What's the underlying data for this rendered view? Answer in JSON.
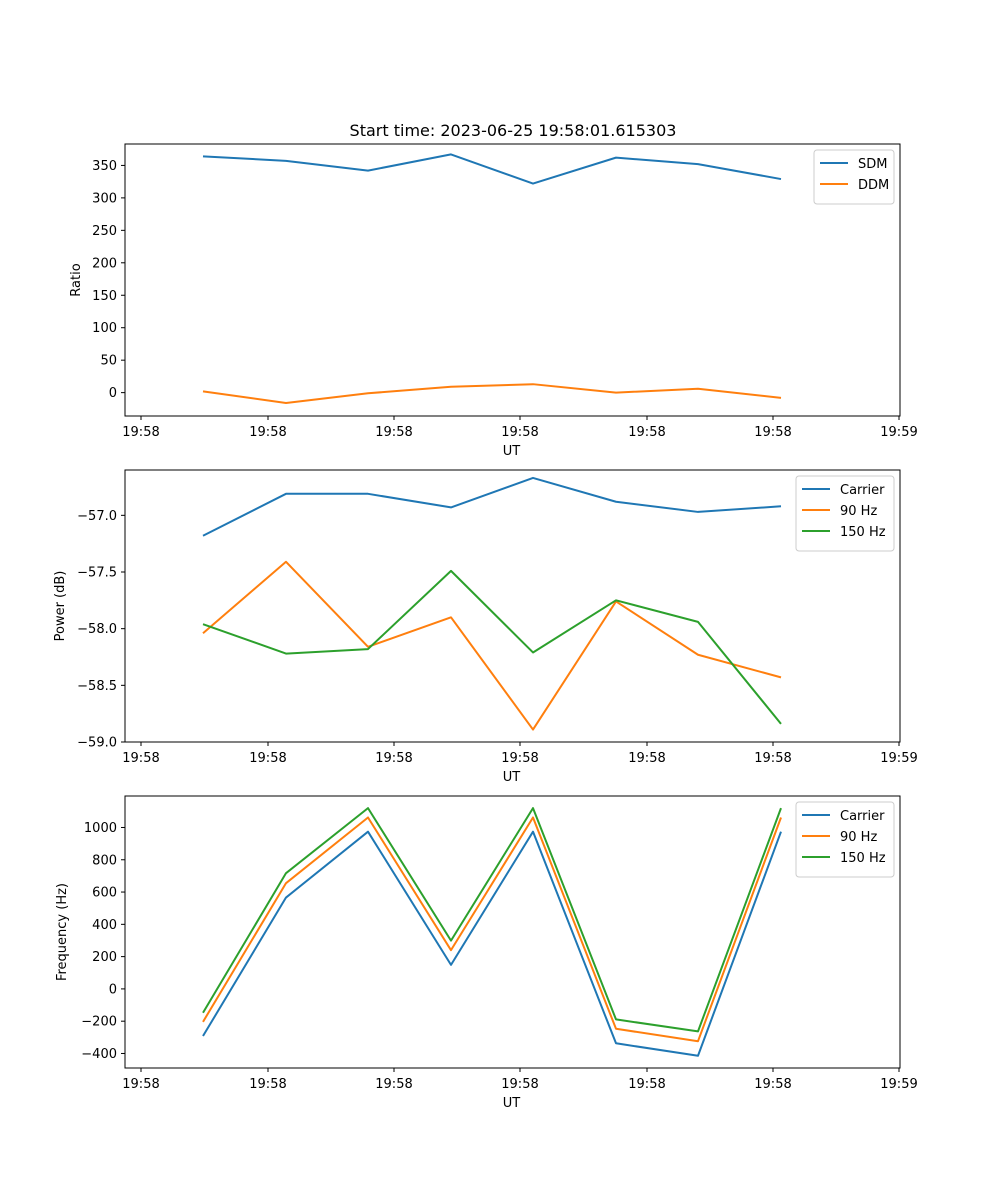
{
  "figure": {
    "title": "Start time: 2023-06-25 19:58:01.615303"
  },
  "chart_data": [
    {
      "type": "line",
      "title": "Start time: 2023-06-25 19:58:01.615303",
      "xlabel": "UT",
      "ylabel": "Ratio",
      "x_tick_labels": [
        "19:58",
        "19:58",
        "19:58",
        "19:58",
        "19:58",
        "19:58",
        "19:59"
      ],
      "y_ticks": [
        0,
        50,
        100,
        150,
        200,
        250,
        300,
        350
      ],
      "ylim": [
        -36,
        383
      ],
      "legend_position": "upper right",
      "grid": false,
      "series": [
        {
          "name": "SDM",
          "color": "#1f77b4",
          "values": [
            364,
            357,
            342,
            367,
            322,
            362,
            352,
            329
          ]
        },
        {
          "name": "DDM",
          "color": "#ff7f0e",
          "values": [
            2,
            -16,
            -1,
            9,
            13,
            0,
            6,
            -8
          ]
        }
      ]
    },
    {
      "type": "line",
      "title": "",
      "xlabel": "UT",
      "ylabel": "Power (dB)",
      "x_tick_labels": [
        "19:58",
        "19:58",
        "19:58",
        "19:58",
        "19:58",
        "19:58",
        "19:59"
      ],
      "y_ticks": [
        -59.0,
        -58.5,
        -58.0,
        -57.5,
        -57.0
      ],
      "y_tick_labels": [
        "−59.0",
        "−58.5",
        "−58.0",
        "−57.5",
        "−57.0"
      ],
      "ylim": [
        -59.0,
        -56.6
      ],
      "legend_position": "upper right",
      "grid": false,
      "series": [
        {
          "name": "Carrier",
          "color": "#1f77b4",
          "values": [
            -57.18,
            -56.81,
            -56.81,
            -56.93,
            -56.67,
            -56.88,
            -56.97,
            -56.92
          ]
        },
        {
          "name": "90 Hz",
          "color": "#ff7f0e",
          "values": [
            -58.04,
            -57.41,
            -58.16,
            -57.9,
            -58.89,
            -57.76,
            -58.23,
            -58.43
          ]
        },
        {
          "name": "150 Hz",
          "color": "#2ca02c",
          "values": [
            -57.96,
            -58.22,
            -58.18,
            -57.49,
            -58.21,
            -57.75,
            -57.94,
            -58.84
          ]
        }
      ]
    },
    {
      "type": "line",
      "title": "",
      "xlabel": "UT",
      "ylabel": "Frequency (Hz)",
      "x_tick_labels": [
        "19:58",
        "19:58",
        "19:58",
        "19:58",
        "19:58",
        "19:58",
        "19:59"
      ],
      "y_ticks": [
        -400,
        -200,
        0,
        200,
        400,
        600,
        800,
        1000
      ],
      "y_tick_labels": [
        "−400",
        "−200",
        "0",
        "200",
        "400",
        "600",
        "800",
        "1000"
      ],
      "ylim": [
        -490,
        1195
      ],
      "legend_position": "upper right",
      "grid": false,
      "series": [
        {
          "name": "Carrier",
          "color": "#1f77b4",
          "values": [
            -292,
            566,
            974,
            149,
            974,
            -337,
            -414,
            974
          ]
        },
        {
          "name": "90 Hz",
          "color": "#ff7f0e",
          "values": [
            -204,
            655,
            1062,
            240,
            1062,
            -247,
            -324,
            1062
          ]
        },
        {
          "name": "150 Hz",
          "color": "#2ca02c",
          "values": [
            -148,
            717,
            1120,
            299,
            1120,
            -189,
            -263,
            1120
          ]
        }
      ]
    }
  ]
}
